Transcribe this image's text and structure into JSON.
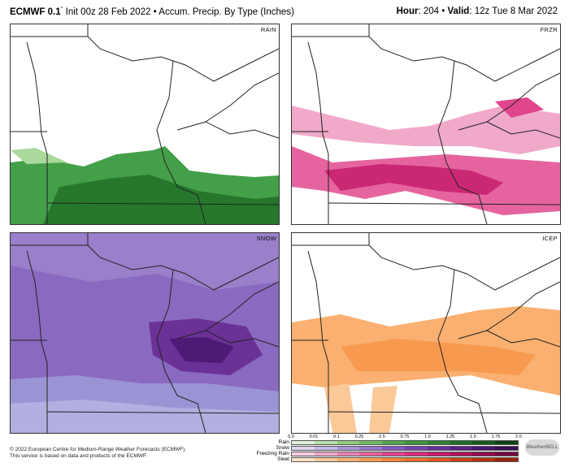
{
  "header": {
    "model": "ECMWF 0.1",
    "degree": "°",
    "init": " Init 00z 28 Feb 2022",
    "sep": " • ",
    "product": "Accum. Precip. By Type (Inches)",
    "hour_label": "Hour",
    "hour_value": ": 204",
    "valid_label": "Valid",
    "valid_value": ": 12z Tue 8 Mar 2022"
  },
  "panels": [
    {
      "id": "rain",
      "label": "RAIN",
      "color": "#3a9a3f"
    },
    {
      "id": "frzr",
      "label": "FRZR",
      "color": "#e2357f"
    },
    {
      "id": "snow",
      "label": "SNOW",
      "color": "#8a5cb8"
    },
    {
      "id": "icep",
      "label": "ICEP",
      "color": "#f6a55a"
    }
  ],
  "legend": {
    "ticks": [
      "0.0",
      "0.01",
      "0.1",
      "0.25",
      "0.5",
      "0.75",
      "1.0",
      "1.25",
      "1.5",
      "1.75",
      "2.0"
    ],
    "rows": [
      {
        "name": "Rain",
        "colors": [
          "#dff0d8",
          "#b7dfa8",
          "#8fcc80",
          "#6cbb63",
          "#4fa84c",
          "#3a963d",
          "#2b8231",
          "#1f6d26",
          "#155a1b",
          "#0c4412"
        ]
      },
      {
        "name": "Snow",
        "colors": [
          "#ddd6f0",
          "#c2b7e6",
          "#a795d8",
          "#9277cc",
          "#8259bf",
          "#7343b0",
          "#64309c",
          "#562185",
          "#47156c",
          "#380c55"
        ]
      },
      {
        "name": "Freezing Rain",
        "colors": [
          "#f7cfe0",
          "#f0a9c9",
          "#ea85b3",
          "#e5649f",
          "#e0468d",
          "#d92c7c",
          "#c61c6c",
          "#ad135c",
          "#920c4d",
          "#77073e"
        ]
      },
      {
        "name": "Sleet",
        "colors": [
          "#fde0c4",
          "#fbc898",
          "#f9b070",
          "#f79a50",
          "#f3843a",
          "#ec6e2a",
          "#dd581f",
          "#c94417",
          "#b03310",
          "#97240a"
        ]
      }
    ]
  },
  "footer": {
    "line1": "© 2022 European Centre for Medium-Range Weather Forecasts (ECMWF).",
    "line2": "This service is based on data and products of the ECMWF."
  },
  "logo_text": "WeatherBELL"
}
